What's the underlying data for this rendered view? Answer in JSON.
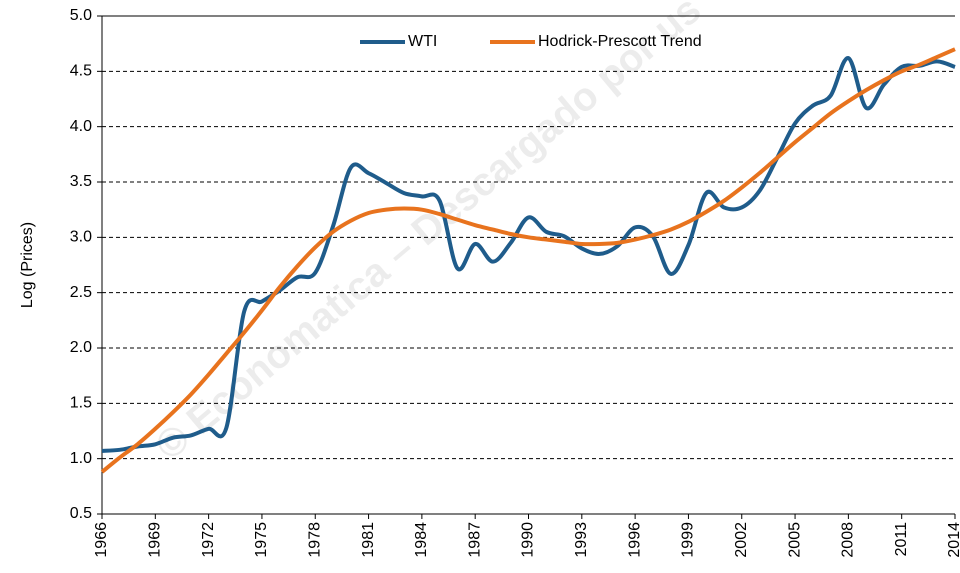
{
  "chart_data": {
    "type": "line",
    "y_label": "Log (Prices)",
    "watermark": "© Economatica – Descargado por us",
    "x": [
      1966,
      1967,
      1968,
      1969,
      1970,
      1971,
      1972,
      1973,
      1974,
      1975,
      1976,
      1977,
      1978,
      1979,
      1980,
      1981,
      1982,
      1983,
      1984,
      1985,
      1986,
      1987,
      1988,
      1989,
      1990,
      1991,
      1992,
      1993,
      1994,
      1995,
      1996,
      1997,
      1998,
      1999,
      2000,
      2001,
      2002,
      2003,
      2004,
      2005,
      2006,
      2007,
      2008,
      2009,
      2010,
      2011,
      2012,
      2013,
      2014
    ],
    "series": [
      {
        "name": "WTI",
        "color": "#1f5c8b",
        "values": [
          1.07,
          1.08,
          1.11,
          1.13,
          1.19,
          1.21,
          1.27,
          1.28,
          2.33,
          2.42,
          2.52,
          2.64,
          2.68,
          3.1,
          3.63,
          3.58,
          3.49,
          3.4,
          3.37,
          3.33,
          2.72,
          2.94,
          2.78,
          2.95,
          3.18,
          3.05,
          3.01,
          2.9,
          2.85,
          2.92,
          3.09,
          3.01,
          2.67,
          2.93,
          3.4,
          3.27,
          3.27,
          3.42,
          3.72,
          4.03,
          4.19,
          4.28,
          4.62,
          4.17,
          4.38,
          4.54,
          4.55,
          4.59,
          4.54
        ]
      },
      {
        "name": "Hodrick-Prescott Trend",
        "color": "#e8731e",
        "values": [
          0.88,
          1.01,
          1.13,
          1.27,
          1.42,
          1.58,
          1.76,
          1.95,
          2.14,
          2.34,
          2.55,
          2.74,
          2.91,
          3.05,
          3.15,
          3.22,
          3.25,
          3.26,
          3.25,
          3.21,
          3.16,
          3.11,
          3.07,
          3.03,
          3.0,
          2.98,
          2.96,
          2.94,
          2.94,
          2.95,
          2.98,
          3.02,
          3.07,
          3.14,
          3.23,
          3.33,
          3.45,
          3.58,
          3.72,
          3.86,
          3.99,
          4.12,
          4.23,
          4.33,
          4.42,
          4.5,
          4.56,
          4.63,
          4.7
        ]
      }
    ],
    "xlim": [
      1966,
      2014
    ],
    "xticks": [
      1966,
      1969,
      1972,
      1975,
      1978,
      1981,
      1984,
      1987,
      1990,
      1993,
      1996,
      1999,
      2002,
      2005,
      2008,
      2011,
      2014
    ],
    "ylim": [
      0.5,
      5.0
    ],
    "yticks": [
      0.5,
      {
        "value": 1,
        "label": "1.0"
      },
      1.5,
      {
        "value": 2,
        "label": "2.0"
      },
      2.5,
      {
        "value": 3,
        "label": "3.0"
      },
      3.5,
      {
        "value": 4,
        "label": "4.0"
      },
      4.5,
      {
        "value": 5,
        "label": "5.0"
      }
    ],
    "grid": true,
    "legend": "top"
  }
}
